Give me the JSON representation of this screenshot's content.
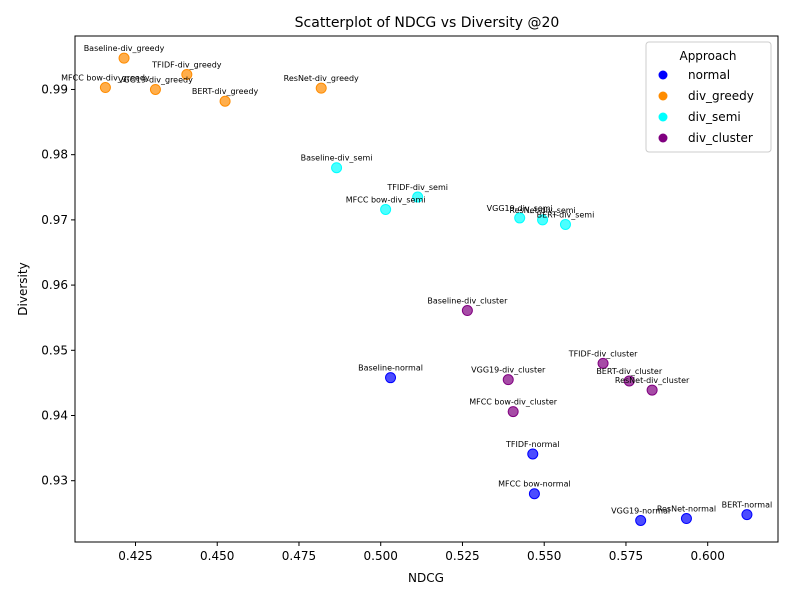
{
  "chart_data": {
    "type": "scatter",
    "title": "Scatterplot of NDCG vs Diversity @20",
    "xlabel": "NDCG",
    "ylabel": "Diversity",
    "xlim": [
      0.4065,
      0.6215
    ],
    "ylim": [
      0.9206,
      0.9982
    ],
    "xticks": [
      "0.425",
      "0.450",
      "0.475",
      "0.500",
      "0.525",
      "0.550",
      "0.575",
      "0.600"
    ],
    "yticks": [
      "0.93",
      "0.94",
      "0.95",
      "0.96",
      "0.97",
      "0.98",
      "0.99"
    ],
    "grid": false,
    "legend": {
      "title": "Approach",
      "placement": "top-right"
    },
    "series": [
      {
        "name": "normal",
        "color": "#0000ff",
        "points": [
          {
            "label": "Baseline-normal",
            "x": 0.503,
            "y": 0.9458
          },
          {
            "label": "TFIDF-normal",
            "x": 0.5465,
            "y": 0.9341
          },
          {
            "label": "MFCC bow-normal",
            "x": 0.547,
            "y": 0.928
          },
          {
            "label": "VGG19-normal",
            "x": 0.5795,
            "y": 0.9239
          },
          {
            "label": "ResNet-normal",
            "x": 0.5935,
            "y": 0.9242
          },
          {
            "label": "BERT-normal",
            "x": 0.612,
            "y": 0.9248
          }
        ]
      },
      {
        "name": "div_greedy",
        "color": "#ff8c00",
        "points": [
          {
            "label": "Baseline-div_greedy",
            "x": 0.4215,
            "y": 0.9948
          },
          {
            "label": "TFIDF-div_greedy",
            "x": 0.4407,
            "y": 0.9923
          },
          {
            "label": "MFCC bow-div_greedy",
            "x": 0.4158,
            "y": 0.9903
          },
          {
            "label": "VGG19-div_greedy",
            "x": 0.4311,
            "y": 0.99
          },
          {
            "label": "BERT-div_greedy",
            "x": 0.4524,
            "y": 0.9882
          },
          {
            "label": "ResNet-div_greedy",
            "x": 0.4818,
            "y": 0.9902
          }
        ]
      },
      {
        "name": "div_semi",
        "color": "#00ffff",
        "points": [
          {
            "label": "Baseline-div_semi",
            "x": 0.4865,
            "y": 0.978
          },
          {
            "label": "TFIDF-div_semi",
            "x": 0.5113,
            "y": 0.9735
          },
          {
            "label": "MFCC bow-div_semi",
            "x": 0.5015,
            "y": 0.9716
          },
          {
            "label": "VGG19-div_semi",
            "x": 0.5425,
            "y": 0.9703
          },
          {
            "label": "ResNet-div_semi",
            "x": 0.5495,
            "y": 0.97
          },
          {
            "label": "BERT-div_semi",
            "x": 0.5565,
            "y": 0.9693
          }
        ]
      },
      {
        "name": "div_cluster",
        "color": "#800080",
        "points": [
          {
            "label": "Baseline-div_cluster",
            "x": 0.5265,
            "y": 0.9561
          },
          {
            "label": "TFIDF-div_cluster",
            "x": 0.568,
            "y": 0.948
          },
          {
            "label": "BERT-div_cluster",
            "x": 0.576,
            "y": 0.9453
          },
          {
            "label": "ResNet-div_cluster",
            "x": 0.583,
            "y": 0.9439
          },
          {
            "label": "VGG19-div_cluster",
            "x": 0.539,
            "y": 0.9455
          },
          {
            "label": "MFCC bow-div_cluster",
            "x": 0.5405,
            "y": 0.9406
          }
        ]
      }
    ]
  }
}
